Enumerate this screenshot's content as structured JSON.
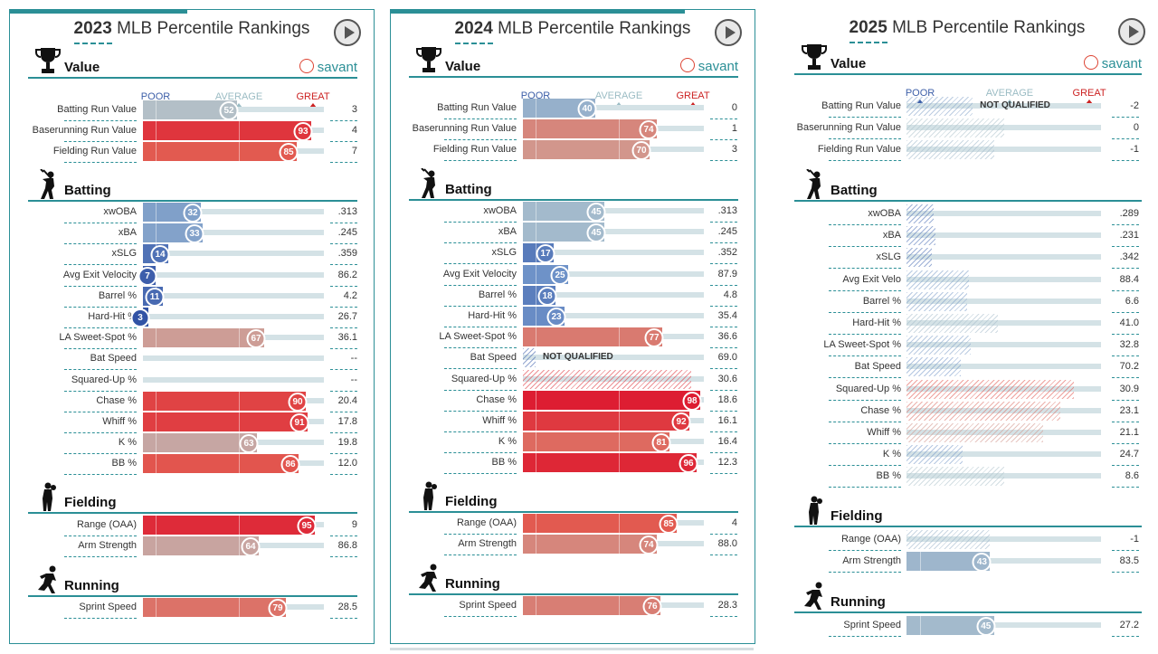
{
  "chart_data": [
    {
      "type": "table",
      "year": "2023",
      "title": "MLB Percentile Rankings",
      "legend": {
        "poor": "POOR",
        "average": "AVERAGE",
        "great": "GREAT"
      },
      "brand": "savant",
      "sections": [
        {
          "name": "Value",
          "icon": "trophy-icon",
          "rows": [
            {
              "label": "Batting Run Value",
              "pct": 52,
              "value": "3",
              "q": true
            },
            {
              "label": "Baserunning Run Value",
              "pct": 93,
              "value": "4",
              "q": true
            },
            {
              "label": "Fielding Run Value",
              "pct": 85,
              "value": "7",
              "q": true
            }
          ]
        },
        {
          "name": "Batting",
          "icon": "batter-icon",
          "rows": [
            {
              "label": "xwOBA",
              "pct": 32,
              "value": ".313",
              "q": true
            },
            {
              "label": "xBA",
              "pct": 33,
              "value": ".245",
              "q": true
            },
            {
              "label": "xSLG",
              "pct": 14,
              "value": ".359",
              "q": true
            },
            {
              "label": "Avg Exit Velocity",
              "pct": 7,
              "value": "86.2",
              "q": true
            },
            {
              "label": "Barrel %",
              "pct": 11,
              "value": "4.2",
              "q": true
            },
            {
              "label": "Hard-Hit %",
              "pct": 3,
              "value": "26.7",
              "q": true
            },
            {
              "label": "LA Sweet-Spot %",
              "pct": 67,
              "value": "36.1",
              "q": true
            },
            {
              "label": "Bat Speed",
              "pct": null,
              "value": "--",
              "q": true
            },
            {
              "label": "Squared-Up %",
              "pct": null,
              "value": "--",
              "q": true
            },
            {
              "label": "Chase %",
              "pct": 90,
              "value": "20.4",
              "q": true
            },
            {
              "label": "Whiff %",
              "pct": 91,
              "value": "17.8",
              "q": true
            },
            {
              "label": "K %",
              "pct": 63,
              "value": "19.8",
              "q": true
            },
            {
              "label": "BB %",
              "pct": 86,
              "value": "12.0",
              "q": true
            }
          ]
        },
        {
          "name": "Fielding",
          "icon": "fielder-icon",
          "rows": [
            {
              "label": "Range (OAA)",
              "pct": 95,
              "value": "9",
              "q": true
            },
            {
              "label": "Arm Strength",
              "pct": 64,
              "value": "86.8",
              "q": true
            }
          ]
        },
        {
          "name": "Running",
          "icon": "runner-icon",
          "rows": [
            {
              "label": "Sprint Speed",
              "pct": 79,
              "value": "28.5",
              "q": true
            }
          ]
        }
      ]
    },
    {
      "type": "table",
      "year": "2024",
      "title": "MLB Percentile Rankings",
      "legend": {
        "poor": "POOR",
        "average": "AVERAGE",
        "great": "GREAT"
      },
      "brand": "savant",
      "sections": [
        {
          "name": "Value",
          "icon": "trophy-icon",
          "rows": [
            {
              "label": "Batting Run Value",
              "pct": 40,
              "value": "0",
              "q": true
            },
            {
              "label": "Baserunning Run Value",
              "pct": 74,
              "value": "1",
              "q": true
            },
            {
              "label": "Fielding Run Value",
              "pct": 70,
              "value": "3",
              "q": true
            }
          ]
        },
        {
          "name": "Batting",
          "icon": "batter-icon",
          "rows": [
            {
              "label": "xwOBA",
              "pct": 45,
              "value": ".313",
              "q": true
            },
            {
              "label": "xBA",
              "pct": 45,
              "value": ".245",
              "q": true
            },
            {
              "label": "xSLG",
              "pct": 17,
              "value": ".352",
              "q": true
            },
            {
              "label": "Avg Exit Velocity",
              "pct": 25,
              "value": "87.9",
              "q": true
            },
            {
              "label": "Barrel %",
              "pct": 18,
              "value": "4.8",
              "q": true
            },
            {
              "label": "Hard-Hit %",
              "pct": 23,
              "value": "35.4",
              "q": true
            },
            {
              "label": "LA Sweet-Spot %",
              "pct": 77,
              "value": "36.6",
              "q": true
            },
            {
              "label": "Bat Speed",
              "pct": 7,
              "value": "69.0",
              "q": false,
              "note": "NOT QUALIFIED"
            },
            {
              "label": "Squared-Up %",
              "pct": 93,
              "value": "30.6",
              "q": false
            },
            {
              "label": "Chase %",
              "pct": 98,
              "value": "18.6",
              "q": true
            },
            {
              "label": "Whiff %",
              "pct": 92,
              "value": "16.1",
              "q": true
            },
            {
              "label": "K %",
              "pct": 81,
              "value": "16.4",
              "q": true
            },
            {
              "label": "BB %",
              "pct": 96,
              "value": "12.3",
              "q": true
            }
          ]
        },
        {
          "name": "Fielding",
          "icon": "fielder-icon",
          "rows": [
            {
              "label": "Range (OAA)",
              "pct": 85,
              "value": "4",
              "q": true
            },
            {
              "label": "Arm Strength",
              "pct": 74,
              "value": "88.0",
              "q": true
            }
          ]
        },
        {
          "name": "Running",
          "icon": "runner-icon",
          "rows": [
            {
              "label": "Sprint Speed",
              "pct": 76,
              "value": "28.3",
              "q": true
            }
          ]
        }
      ]
    },
    {
      "type": "table",
      "year": "2025",
      "title": "MLB Percentile Rankings",
      "legend": {
        "poor": "POOR",
        "average": "AVERAGE",
        "great": "GREAT"
      },
      "brand": "savant",
      "sections": [
        {
          "name": "Value",
          "icon": "trophy-icon",
          "rows": [
            {
              "label": "Batting Run Value",
              "pct": 34,
              "value": "-2",
              "q": false,
              "note": "NOT QUALIFIED"
            },
            {
              "label": "Baserunning Run Value",
              "pct": 50,
              "value": "0",
              "q": false
            },
            {
              "label": "Fielding Run Value",
              "pct": 45,
              "value": "-1",
              "q": false
            }
          ]
        },
        {
          "name": "Batting",
          "icon": "batter-icon",
          "rows": [
            {
              "label": "xwOBA",
              "pct": 14,
              "value": ".289",
              "q": false
            },
            {
              "label": "xBA",
              "pct": 15,
              "value": ".231",
              "q": false
            },
            {
              "label": "xSLG",
              "pct": 13,
              "value": ".342",
              "q": false
            },
            {
              "label": "Avg Exit Velo",
              "pct": 32,
              "value": "88.4",
              "q": false
            },
            {
              "label": "Barrel %",
              "pct": 31,
              "value": "6.6",
              "q": false
            },
            {
              "label": "Hard-Hit %",
              "pct": 47,
              "value": "41.0",
              "q": false
            },
            {
              "label": "LA Sweet-Spot %",
              "pct": 33,
              "value": "32.8",
              "q": false
            },
            {
              "label": "Bat Speed",
              "pct": 28,
              "value": "70.2",
              "q": false
            },
            {
              "label": "Squared-Up %",
              "pct": 86,
              "value": "30.9",
              "q": false
            },
            {
              "label": "Chase %",
              "pct": 79,
              "value": "23.1",
              "q": false
            },
            {
              "label": "Whiff %",
              "pct": 70,
              "value": "21.1",
              "q": false
            },
            {
              "label": "K %",
              "pct": 29,
              "value": "24.7",
              "q": false
            },
            {
              "label": "BB %",
              "pct": 50,
              "value": "8.6",
              "q": false
            }
          ]
        },
        {
          "name": "Fielding",
          "icon": "fielder-icon",
          "rows": [
            {
              "label": "Range (OAA)",
              "pct": 43,
              "value": "-1",
              "q": false
            },
            {
              "label": "Arm Strength",
              "pct": 43,
              "value": "83.5",
              "q": true
            }
          ]
        },
        {
          "name": "Running",
          "icon": "runner-icon",
          "rows": [
            {
              "label": "Sprint Speed",
              "pct": 45,
              "value": "27.2",
              "q": true
            }
          ]
        }
      ]
    }
  ]
}
